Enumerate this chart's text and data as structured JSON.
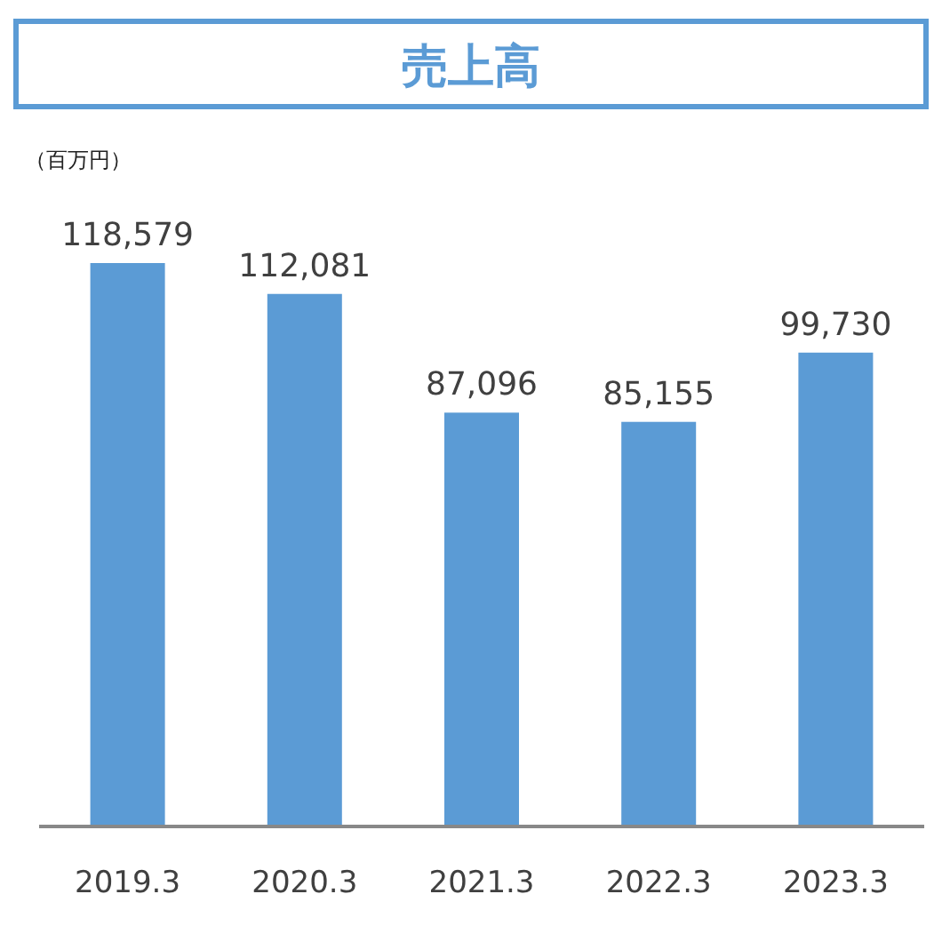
{
  "chart_data": {
    "type": "bar",
    "title": "売上高",
    "ylabel": "（百万円）",
    "categories": [
      "2019.3",
      "2020.3",
      "2021.3",
      "2022.3",
      "2023.3"
    ],
    "values": [
      118579,
      112081,
      87096,
      85155,
      99730
    ],
    "value_labels": [
      "118,579",
      "112,081",
      "87,096",
      "85,155",
      "99,730"
    ],
    "color": "#5b9bd5"
  }
}
